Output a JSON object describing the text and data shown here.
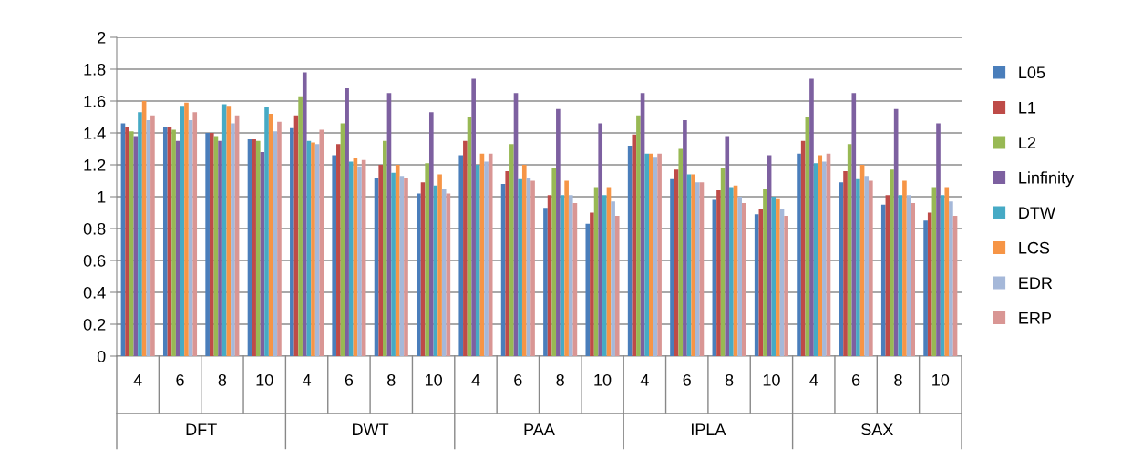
{
  "chart_data": {
    "type": "bar",
    "categories": [
      "4",
      "6",
      "8",
      "10",
      "4",
      "6",
      "8",
      "10",
      "4",
      "6",
      "8",
      "10",
      "4",
      "6",
      "8",
      "10",
      "4",
      "6",
      "8",
      "10"
    ],
    "annotations": [
      "DFT",
      "DWT",
      "PAA",
      "IPLA",
      "SAX"
    ],
    "series": [
      {
        "name": "L05",
        "color": "#4a7ebb",
        "values": [
          1.46,
          1.44,
          1.4,
          1.36,
          1.43,
          1.26,
          1.12,
          1.02,
          1.26,
          1.08,
          0.93,
          0.83,
          1.32,
          1.11,
          0.98,
          0.89,
          1.27,
          1.09,
          0.95,
          0.85
        ]
      },
      {
        "name": "L1",
        "color": "#be4b48",
        "values": [
          1.44,
          1.44,
          1.4,
          1.36,
          1.51,
          1.33,
          1.2,
          1.09,
          1.35,
          1.16,
          1.01,
          0.9,
          1.39,
          1.17,
          1.04,
          0.92,
          1.35,
          1.16,
          1.01,
          0.9
        ]
      },
      {
        "name": "L2",
        "color": "#98b954",
        "values": [
          1.41,
          1.42,
          1.38,
          1.35,
          1.63,
          1.46,
          1.35,
          1.21,
          1.5,
          1.33,
          1.18,
          1.06,
          1.51,
          1.3,
          1.18,
          1.05,
          1.5,
          1.33,
          1.17,
          1.06
        ]
      },
      {
        "name": "Linfinity",
        "color": "#7d60a0",
        "values": [
          1.38,
          1.35,
          1.35,
          1.28,
          1.78,
          1.68,
          1.65,
          1.53,
          1.74,
          1.65,
          1.55,
          1.46,
          1.65,
          1.48,
          1.38,
          1.26,
          1.74,
          1.65,
          1.55,
          1.46
        ]
      },
      {
        "name": "DTW",
        "color": "#46aac5",
        "values": [
          1.53,
          1.57,
          1.58,
          1.56,
          1.35,
          1.22,
          1.15,
          1.07,
          1.2,
          1.11,
          1.01,
          1.01,
          1.27,
          1.14,
          1.06,
          1.0,
          1.21,
          1.11,
          1.01,
          1.01
        ]
      },
      {
        "name": "LCS",
        "color": "#f69546",
        "values": [
          1.6,
          1.59,
          1.57,
          1.52,
          1.34,
          1.24,
          1.2,
          1.14,
          1.27,
          1.2,
          1.1,
          1.06,
          1.27,
          1.14,
          1.07,
          0.99,
          1.26,
          1.2,
          1.1,
          1.06
        ]
      },
      {
        "name": "EDR",
        "color": "#a5b8d9",
        "values": [
          1.48,
          1.48,
          1.46,
          1.41,
          1.33,
          1.19,
          1.13,
          1.05,
          1.22,
          1.12,
          1.01,
          0.97,
          1.25,
          1.09,
          1.0,
          0.92,
          1.22,
          1.13,
          1.01,
          0.97
        ]
      },
      {
        "name": "ERP",
        "color": "#d99694",
        "values": [
          1.51,
          1.53,
          1.51,
          1.47,
          1.42,
          1.23,
          1.12,
          1.02,
          1.27,
          1.1,
          0.96,
          0.88,
          1.27,
          1.09,
          0.96,
          0.88,
          1.27,
          1.1,
          0.96,
          0.88
        ]
      }
    ],
    "ylim": [
      0,
      2
    ],
    "yticks": [
      0,
      0.2,
      0.4,
      0.6,
      0.8,
      1,
      1.2,
      1.4,
      1.6,
      1.8,
      2
    ],
    "grid": "y",
    "legend": "right"
  }
}
